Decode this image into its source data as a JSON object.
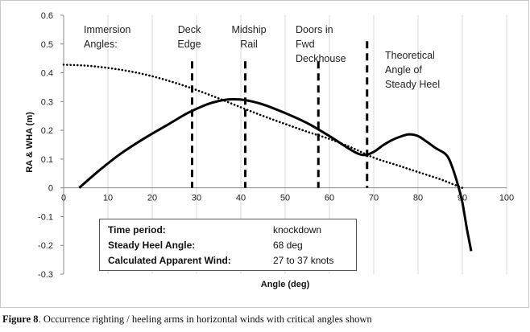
{
  "chart_data": {
    "type": "line",
    "xlabel": "Angle (deg)",
    "ylabel": "RA & WHA (m)",
    "xlim": [
      0,
      100
    ],
    "ylim": [
      -0.3,
      0.6
    ],
    "xticks": [
      "0",
      "10",
      "20",
      "30",
      "40",
      "50",
      "60",
      "70",
      "80",
      "90",
      "100"
    ],
    "yticks": [
      "-0.3",
      "-0.2",
      "-0.1",
      "0",
      "0.1",
      "0.2",
      "0.3",
      "0.4",
      "0.5",
      "0.6"
    ],
    "grid": "vertical",
    "series": [
      {
        "style": "solid",
        "x": [
          3.5,
          8,
          13,
          18,
          23,
          28,
          32,
          35,
          38,
          41,
          45,
          50,
          55,
          60,
          63,
          66,
          68,
          70,
          72,
          74,
          76,
          78,
          80,
          82,
          84,
          86,
          87,
          88,
          89,
          90,
          91,
          92
        ],
        "y": [
          0,
          0.06,
          0.12,
          0.17,
          0.215,
          0.26,
          0.288,
          0.302,
          0.308,
          0.305,
          0.29,
          0.26,
          0.225,
          0.18,
          0.15,
          0.122,
          0.114,
          0.125,
          0.147,
          0.165,
          0.178,
          0.186,
          0.18,
          0.16,
          0.138,
          0.12,
          0.1,
          0.06,
          0.01,
          -0.05,
          -0.14,
          -0.22
        ]
      },
      {
        "style": "dotted",
        "x": [
          0,
          5,
          10,
          15,
          20,
          25,
          30,
          35,
          40,
          45,
          50,
          55,
          60,
          65,
          70,
          75,
          80,
          85,
          88,
          90
        ],
        "y": [
          0.428,
          0.425,
          0.417,
          0.405,
          0.388,
          0.366,
          0.34,
          0.311,
          0.28,
          0.25,
          0.222,
          0.195,
          0.17,
          0.14,
          0.105,
          0.08,
          0.055,
          0.03,
          0.012,
          0.0
        ]
      }
    ],
    "critical_angles": [
      29,
      41,
      57.5,
      68.5
    ],
    "annotations": {
      "immersion_line1": "Immersion",
      "immersion_line2": "Angles:",
      "deck_line1": "Deck",
      "deck_line2": "Edge",
      "midship_line1": "Midship",
      "midship_line2": "Rail",
      "doors_line1": "Doors in",
      "doors_line2": "Fwd",
      "doors_line3": "Deckhouse",
      "theo_line1": "Theoretical",
      "theo_line2": "Angle of",
      "theo_line3": "Steady Heel"
    },
    "info_box": [
      {
        "label": "Time period:",
        "value": "knockdown"
      },
      {
        "label": "Steady Heel Angle:",
        "value": "68 deg"
      },
      {
        "label": "Calculated Apparent Wind:",
        "value": "27 to 37 knots"
      }
    ]
  },
  "caption": {
    "label": "Figure 8",
    "text": ". Occurrence righting / heeling arms in horizontal winds with critical angles shown"
  }
}
